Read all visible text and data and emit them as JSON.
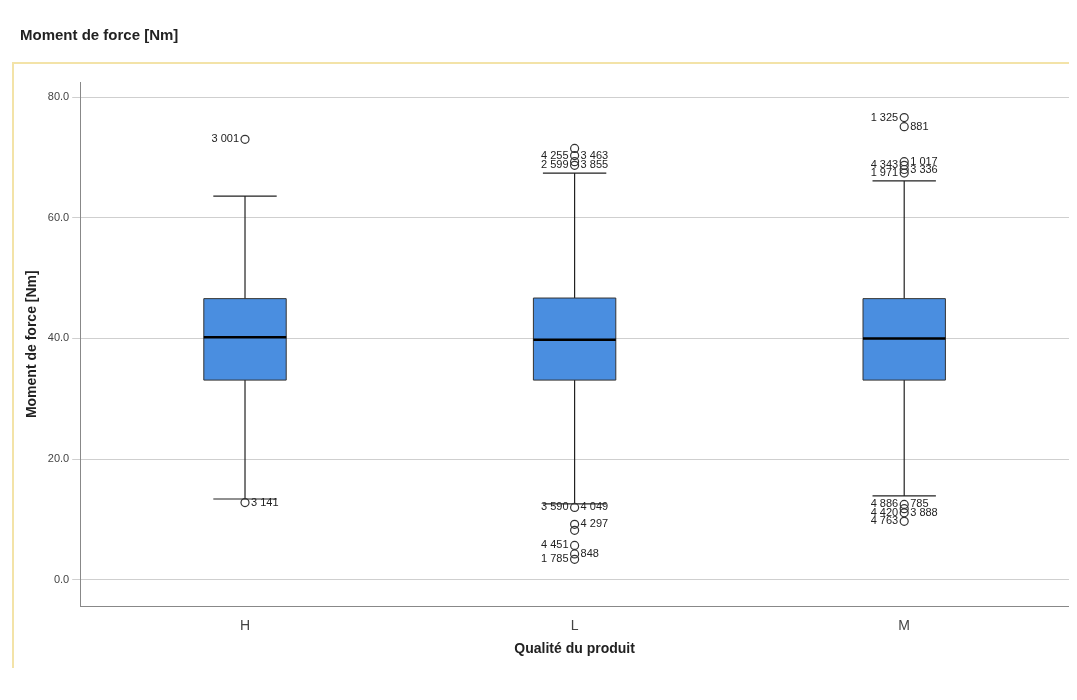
{
  "chart_data": {
    "type": "box",
    "title": "Moment de force [Nm]",
    "xlabel": "Qualité du produit",
    "ylabel": "Moment de force [Nm]",
    "categories": [
      "H",
      "L",
      "M"
    ],
    "color": "#4a8ee0",
    "boxes": [
      {
        "low": 13.4,
        "q1": 33.1,
        "median": 40.2,
        "q3": 46.6,
        "high": 63.6
      },
      {
        "low": 12.6,
        "q1": 33.1,
        "median": 39.8,
        "q3": 46.7,
        "high": 67.4
      },
      {
        "low": 13.9,
        "q1": 33.1,
        "median": 40.0,
        "q3": 46.6,
        "high": 66.1
      }
    ],
    "series": [
      {
        "type": "scatter",
        "color": "#333333",
        "x": [
          "H",
          "H",
          "L",
          "L",
          "L",
          "L",
          "L",
          "L",
          "L",
          "L",
          "L",
          "L",
          "M",
          "M",
          "M",
          "M",
          "M",
          "M",
          "M",
          "M",
          "M",
          "M"
        ],
        "values": [
          73.0,
          12.8,
          71.5,
          70.3,
          69.3,
          68.7,
          12.0,
          9.2,
          5.7,
          4.3,
          3.4,
          8.2,
          76.6,
          75.1,
          69.3,
          68.7,
          68.0,
          67.4,
          12.5,
          11.8,
          11.1,
          9.7
        ]
      }
    ],
    "ylim": [
      -4.4,
      82.5
    ],
    "yticks": [
      {
        "value": 0,
        "label": "0.0"
      },
      {
        "value": 20,
        "label": "20.0"
      },
      {
        "value": 40,
        "label": "40.0"
      },
      {
        "value": 60,
        "label": "60.0"
      },
      {
        "value": 80,
        "label": "80.0"
      }
    ],
    "grid": "y",
    "legend": false,
    "marker": "circle",
    "annotations": [
      {
        "text": "3 001",
        "x": "H",
        "y": 73.0
      },
      {
        "text": "3 141",
        "x": "H",
        "y": 12.8
      },
      {
        "text": "4 255",
        "x": "L",
        "y": 70.3
      },
      {
        "text": "3 463",
        "x": "L",
        "y": 70.3
      },
      {
        "text": "2 599",
        "x": "L",
        "y": 68.7
      },
      {
        "text": "3 855",
        "x": "L",
        "y": 68.7
      },
      {
        "text": "3 590",
        "x": "L",
        "y": 12.0
      },
      {
        "text": "4 049",
        "x": "L",
        "y": 12.0
      },
      {
        "text": "4 451",
        "x": "L",
        "y": 5.7
      },
      {
        "text": "4 297",
        "x": "L",
        "y": 9.2
      },
      {
        "text": "1 785",
        "x": "L",
        "y": 3.4
      },
      {
        "text": "848",
        "x": "L",
        "y": 4.3
      },
      {
        "text": "1 325",
        "x": "M",
        "y": 76.6
      },
      {
        "text": "881",
        "x": "M",
        "y": 75.1
      },
      {
        "text": "4 343",
        "x": "M",
        "y": 68.7
      },
      {
        "text": "1 017",
        "x": "M",
        "y": 69.3
      },
      {
        "text": "1 971",
        "x": "M",
        "y": 67.4
      },
      {
        "text": "3 336",
        "x": "M",
        "y": 68.0
      },
      {
        "text": "4 886",
        "x": "M",
        "y": 12.5
      },
      {
        "text": "785",
        "x": "M",
        "y": 12.5
      },
      {
        "text": "4 420",
        "x": "M",
        "y": 11.1
      },
      {
        "text": "3 888",
        "x": "M",
        "y": 11.1
      },
      {
        "text": "4 763",
        "x": "M",
        "y": 9.7
      }
    ]
  }
}
